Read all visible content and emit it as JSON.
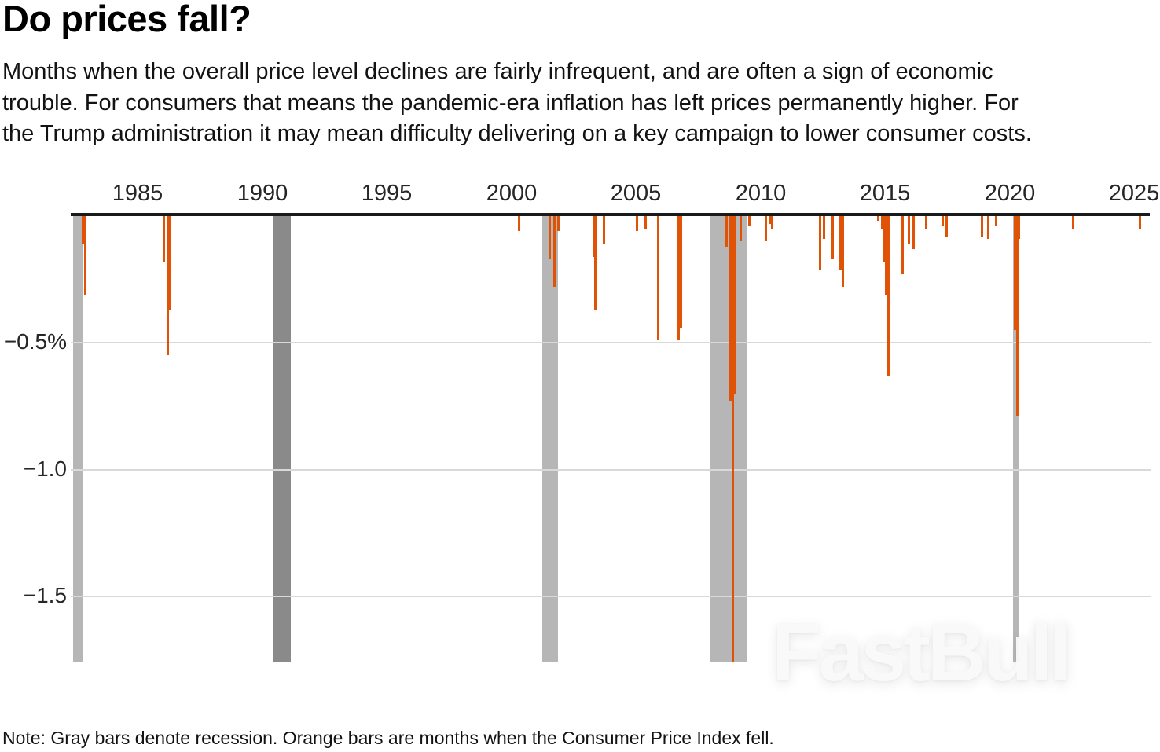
{
  "header": {
    "title": "Do prices fall?",
    "subtitle": "Months when the overall price level declines are fairly infrequent, and are often a sign of economic\ntrouble. For consumers that means the pandemic-era inflation has left prices permanently higher. For\nthe Trump administration it may mean difficulty delivering on a key campaign to lower consumer costs."
  },
  "footer": {
    "note": "Note: Gray bars denote recession. Orange bars are months when the Consumer Price Index fell."
  },
  "watermark": "FastBull",
  "chart_data": {
    "type": "bar",
    "title": "Do prices fall?",
    "xlabel": "",
    "ylabel": "",
    "grid": true,
    "legend": "none",
    "xlim_years": [
      1982.32,
      2025.65
    ],
    "ylim": [
      -1.76,
      0
    ],
    "x_ticks": [
      "1985",
      "1990",
      "1995",
      "2000",
      "2005",
      "2010",
      "2015",
      "2020",
      "2025"
    ],
    "y_ticks": [
      {
        "value": -0.5,
        "label": "−0.5%"
      },
      {
        "value": -1.0,
        "label": "−1.0"
      },
      {
        "value": -1.5,
        "label": "−1.5"
      }
    ],
    "bar_color": "#e05206",
    "recession_color_default": "#b6b6b6",
    "series": [
      {
        "name": "Months when the Consumer Price Index fell (monthly % change)",
        "points": [
          [
            "1982-10",
            -0.11
          ],
          [
            "1982-11",
            -0.31
          ],
          [
            "1986-01",
            -0.18
          ],
          [
            "1986-03",
            -0.55
          ],
          [
            "1986-04",
            -0.37
          ],
          [
            "2000-04",
            -0.06
          ],
          [
            "2001-07",
            -0.17
          ],
          [
            "2001-09",
            -0.28
          ],
          [
            "2001-11",
            -0.06
          ],
          [
            "2003-04",
            -0.16
          ],
          [
            "2003-05",
            -0.37
          ],
          [
            "2003-09",
            -0.11
          ],
          [
            "2005-01",
            -0.06
          ],
          [
            "2005-05",
            -0.05
          ],
          [
            "2005-11",
            -0.49
          ],
          [
            "2006-09",
            -0.49
          ],
          [
            "2006-10",
            -0.44
          ],
          [
            "2008-08",
            -0.12
          ],
          [
            "2008-10",
            -0.73
          ],
          [
            "2008-11",
            -1.8
          ],
          [
            "2008-12",
            -0.7
          ],
          [
            "2009-03",
            -0.1
          ],
          [
            "2009-07",
            -0.04
          ],
          [
            "2010-03",
            -0.1
          ],
          [
            "2010-05",
            -0.03
          ],
          [
            "2010-06",
            -0.05
          ],
          [
            "2012-05",
            -0.21
          ],
          [
            "2012-07",
            -0.09
          ],
          [
            "2012-11",
            -0.17
          ],
          [
            "2013-03",
            -0.21
          ],
          [
            "2013-04",
            -0.28
          ],
          [
            "2014-09",
            -0.02
          ],
          [
            "2014-11",
            -0.05
          ],
          [
            "2014-12",
            -0.18
          ],
          [
            "2015-01",
            -0.31
          ],
          [
            "2015-02",
            -0.63
          ],
          [
            "2015-09",
            -0.23
          ],
          [
            "2015-12",
            -0.11
          ],
          [
            "2016-02",
            -0.13
          ],
          [
            "2016-08",
            -0.05
          ],
          [
            "2017-04",
            -0.04
          ],
          [
            "2017-06",
            -0.08
          ],
          [
            "2018-11",
            -0.08
          ],
          [
            "2019-02",
            -0.09
          ],
          [
            "2019-06",
            -0.04
          ],
          [
            "2020-03",
            -0.45
          ],
          [
            "2020-04",
            -0.79
          ],
          [
            "2020-05",
            -0.09
          ],
          [
            "2022-07",
            -0.05
          ],
          [
            "2025-03",
            -0.05
          ]
        ]
      }
    ],
    "recessions": [
      {
        "start_year": 1982.4,
        "end_year": 1982.8
      },
      {
        "start_year": 1990.42,
        "end_year": 1991.15,
        "color": "#8a8a8a"
      },
      {
        "start_year": 2001.25,
        "end_year": 2001.87
      },
      {
        "start_year": 2007.96,
        "end_year": 2009.48
      },
      {
        "start_year": 2020.13,
        "end_year": 2020.36
      }
    ]
  }
}
